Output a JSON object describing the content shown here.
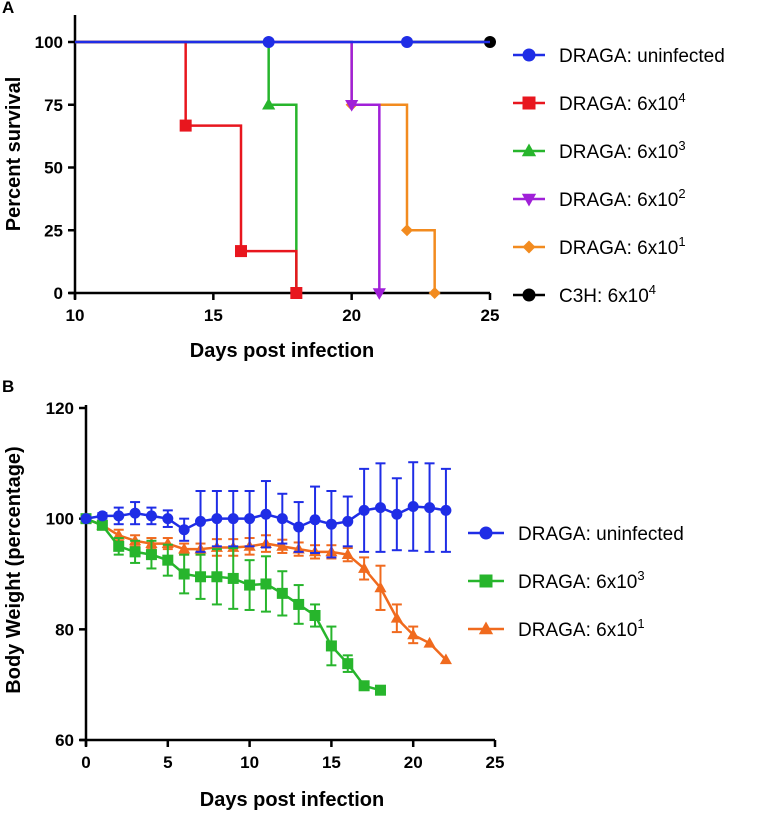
{
  "figure_panels": [
    "A",
    "B"
  ],
  "chart_data": [
    {
      "panel": "A",
      "type": "line",
      "subtype": "kaplan-meier survival",
      "title": "",
      "xlabel": "Days post infection",
      "ylabel": "Percent survival",
      "xlim": [
        10,
        25
      ],
      "ylim": [
        0,
        100
      ],
      "xticks": [
        10,
        15,
        20,
        25
      ],
      "yticks": [
        0,
        25,
        50,
        75,
        100
      ],
      "grid": false,
      "legend_position": "right",
      "series": [
        {
          "name": "DRAGA: uninfected",
          "label_base": "DRAGA: uninfected",
          "sup": "",
          "color": "#1f2de6",
          "marker": "circle",
          "steps": [
            [
              10,
              100
            ],
            [
              25,
              100
            ]
          ],
          "markers": [
            [
              17,
              100
            ],
            [
              22,
              100
            ]
          ]
        },
        {
          "name": "DRAGA: 6x10^4",
          "label_base": "DRAGA: 6x10",
          "sup": "4",
          "color": "#e8161e",
          "marker": "square",
          "steps": [
            [
              10,
              100
            ],
            [
              14,
              100
            ],
            [
              14,
              66.7
            ],
            [
              16,
              66.7
            ],
            [
              16,
              16.7
            ],
            [
              18,
              16.7
            ],
            [
              18,
              0
            ]
          ],
          "markers": [
            [
              14,
              66.7
            ],
            [
              16,
              16.7
            ],
            [
              18,
              0
            ]
          ]
        },
        {
          "name": "DRAGA: 6x10^3",
          "label_base": "DRAGA: 6x10",
          "sup": "3",
          "color": "#27b52c",
          "marker": "triangle-up",
          "steps": [
            [
              10,
              100
            ],
            [
              17,
              100
            ],
            [
              17,
              75
            ],
            [
              18,
              75
            ],
            [
              18,
              0
            ]
          ],
          "markers": [
            [
              17,
              75
            ]
          ]
        },
        {
          "name": "DRAGA: 6x10^2",
          "label_base": "DRAGA: 6x10",
          "sup": "2",
          "color": "#a020d8",
          "marker": "triangle-down",
          "steps": [
            [
              10,
              100
            ],
            [
              20,
              100
            ],
            [
              20,
              75
            ],
            [
              21,
              75
            ],
            [
              21,
              0
            ]
          ],
          "markers": [
            [
              20,
              75
            ],
            [
              21,
              0
            ]
          ]
        },
        {
          "name": "DRAGA: 6x10^1",
          "label_base": "DRAGA: 6x10",
          "sup": "1",
          "color": "#f28b1f",
          "marker": "diamond",
          "steps": [
            [
              10,
              100
            ],
            [
              20,
              100
            ],
            [
              20,
              75
            ],
            [
              22,
              75
            ],
            [
              22,
              25
            ],
            [
              23,
              25
            ],
            [
              23,
              0
            ]
          ],
          "markers": [
            [
              20,
              75
            ],
            [
              22,
              25
            ],
            [
              23,
              0
            ]
          ]
        },
        {
          "name": "C3H: 6x10^4",
          "label_base": "C3H: 6x10",
          "sup": "4",
          "color": "#000000",
          "marker": "circle",
          "steps": [
            [
              22,
              100
            ],
            [
              25,
              100
            ]
          ],
          "markers": [
            [
              25,
              100
            ]
          ]
        }
      ]
    },
    {
      "panel": "B",
      "type": "line",
      "subtype": "mean with error bars",
      "title": "",
      "xlabel": "Days post infection",
      "ylabel": "Body Weight (percentage)",
      "xlim": [
        0,
        25
      ],
      "ylim": [
        60,
        120
      ],
      "xticks": [
        0,
        5,
        10,
        15,
        20,
        25
      ],
      "yticks": [
        60,
        80,
        100,
        120
      ],
      "grid": false,
      "legend_position": "right",
      "series": [
        {
          "name": "DRAGA: uninfected",
          "label_base": "DRAGA: uninfected",
          "sup": "",
          "color": "#1f2de6",
          "marker": "circle",
          "x": [
            0,
            1,
            2,
            3,
            4,
            5,
            6,
            7,
            8,
            9,
            10,
            11,
            12,
            13,
            14,
            15,
            16,
            17,
            18,
            19,
            20,
            21,
            22
          ],
          "y": [
            100,
            100.5,
            100.5,
            101,
            100.5,
            100,
            98,
            99.5,
            100,
            100,
            100,
            100.8,
            100,
            98.5,
            99.8,
            99,
            99.5,
            101.5,
            102,
            100.8,
            102.2,
            102,
            101.5
          ],
          "err": [
            0,
            0.5,
            1.5,
            2,
            1.5,
            1.5,
            2,
            5.5,
            5,
            5,
            5,
            6,
            4.5,
            4.5,
            6,
            6,
            4.5,
            7.5,
            8,
            6.5,
            8,
            8,
            7.5
          ]
        },
        {
          "name": "DRAGA: 6x10^3",
          "label_base": "DRAGA: 6x10",
          "sup": "3",
          "color": "#27b52c",
          "marker": "square",
          "x": [
            0,
            1,
            2,
            3,
            4,
            5,
            6,
            7,
            8,
            9,
            10,
            11,
            12,
            13,
            14,
            15,
            16,
            17,
            18
          ],
          "y": [
            100,
            98.8,
            95,
            94,
            93.5,
            92.5,
            90,
            89.5,
            89.5,
            89.2,
            88,
            88.2,
            86.5,
            84.5,
            82.5,
            77,
            73.8,
            69.8,
            69
          ],
          "err": [
            0,
            0.5,
            1.5,
            2,
            2.5,
            2.8,
            3.5,
            4,
            5,
            5.5,
            4.5,
            5,
            4,
            3.5,
            2,
            3.5,
            1.5,
            0.5,
            0.5
          ]
        },
        {
          "name": "DRAGA: 6x10^1",
          "label_base": "DRAGA: 6x10",
          "sup": "1",
          "color": "#f06a1e",
          "marker": "triangle-up",
          "x": [
            0,
            1,
            2,
            3,
            4,
            5,
            6,
            7,
            8,
            9,
            10,
            11,
            12,
            13,
            14,
            15,
            16,
            17,
            18,
            19,
            20,
            21,
            22
          ],
          "y": [
            100,
            98.8,
            97,
            96,
            95.5,
            95.5,
            94.5,
            94.5,
            94.8,
            94.8,
            95,
            95.5,
            95,
            94.5,
            94,
            94,
            93.5,
            91,
            87.5,
            82,
            79,
            77.5,
            74.5
          ],
          "err": [
            0,
            0.5,
            1,
            1,
            1,
            1,
            1,
            1,
            1.5,
            1.5,
            1.5,
            1.5,
            1.2,
            1.2,
            1.2,
            1.2,
            1.2,
            2,
            4,
            2.5,
            1.5,
            0,
            0
          ]
        }
      ]
    }
  ]
}
